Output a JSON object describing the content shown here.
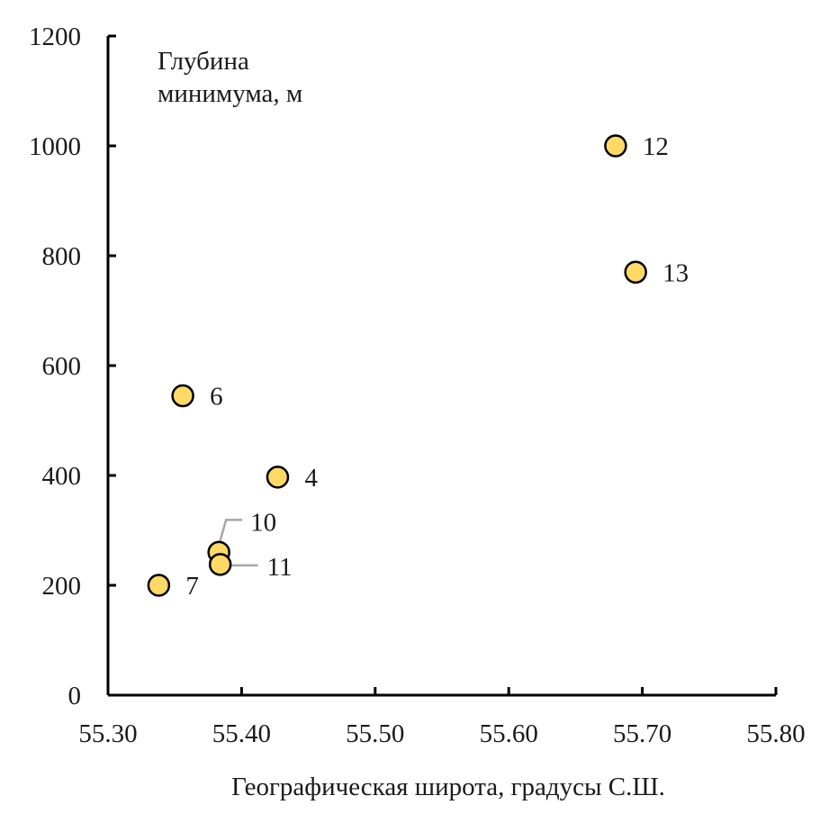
{
  "chart_data": {
    "type": "scatter",
    "title": "",
    "xlabel": "Географическая широта, градусы С.Ш.",
    "ylabel_lines": [
      "Глубина",
      "минимума, м"
    ],
    "xlim": [
      55.3,
      55.8
    ],
    "ylim": [
      0,
      1200
    ],
    "x_ticks": [
      "55.30",
      "55.40",
      "55.50",
      "55.60",
      "55.70",
      "55.80"
    ],
    "y_ticks": [
      "0",
      "200",
      "400",
      "600",
      "800",
      "1000",
      "1200"
    ],
    "grid": false,
    "legend": "none",
    "marker_color": "#ffd966",
    "marker_edge_color": "#000000",
    "points": [
      {
        "label": "12",
        "x": 55.68,
        "y": 1000
      },
      {
        "label": "13",
        "x": 55.695,
        "y": 770
      },
      {
        "label": "6",
        "x": 55.356,
        "y": 545
      },
      {
        "label": "4",
        "x": 55.427,
        "y": 397
      },
      {
        "label": "10",
        "x": 55.383,
        "y": 260
      },
      {
        "label": "11",
        "x": 55.384,
        "y": 238
      },
      {
        "label": "7",
        "x": 55.338,
        "y": 200
      }
    ]
  }
}
